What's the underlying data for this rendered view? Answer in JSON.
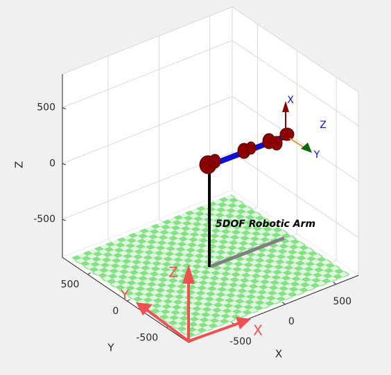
{
  "axes": {
    "xlabel": "X",
    "ylabel": "Y",
    "zlabel": "Z",
    "xlim": [
      -950,
      720
    ],
    "ylim": [
      -780,
      820
    ],
    "zlim": [
      -840,
      800
    ],
    "xticks": [
      -500,
      0,
      500
    ],
    "yticks": [
      -500,
      0,
      500
    ],
    "zticks": [
      -500,
      0,
      500
    ],
    "grid": true
  },
  "annotation": "5DOF Robotic Arm",
  "world_frame": {
    "x": "X",
    "y": "Y",
    "z": "Z"
  },
  "tool_frame": {
    "x": "X",
    "y": "Y",
    "z": "Z"
  }
}
